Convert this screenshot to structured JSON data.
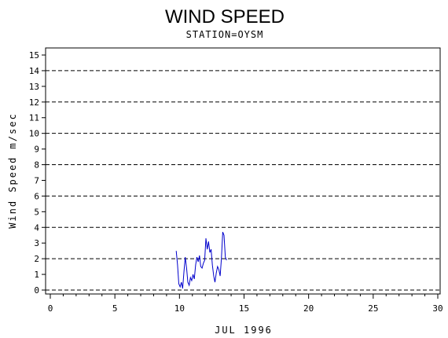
{
  "chart_data": {
    "type": "line",
    "title": "WIND SPEED",
    "subtitle": "STATION=OYSM",
    "xlabel": "JUL 1996",
    "ylabel": "Wind Speed m/sec",
    "xlim": [
      0,
      30
    ],
    "ylim": [
      0,
      15
    ],
    "x_ticks": [
      0,
      5,
      10,
      15,
      20,
      25,
      30
    ],
    "y_ticks": [
      0,
      1,
      2,
      3,
      4,
      5,
      6,
      7,
      8,
      9,
      10,
      11,
      12,
      13,
      14,
      15
    ],
    "gridlines_y": [
      0,
      2,
      4,
      6,
      8,
      10,
      12,
      14
    ],
    "grid": "dashed horizontal",
    "series_color": "#0000cc",
    "series": [
      {
        "x": [
          9.75,
          9.85,
          9.95,
          10.05,
          10.15,
          10.25,
          10.35,
          10.45,
          10.55,
          10.65,
          10.75,
          10.85,
          10.95,
          11.05,
          11.15,
          11.25,
          11.35,
          11.45,
          11.55,
          11.65,
          11.75,
          11.85,
          11.95,
          12.05,
          12.15,
          12.25,
          12.35,
          12.45,
          12.55,
          12.65,
          12.75,
          12.85,
          12.95,
          13.05,
          13.15,
          13.25,
          13.35,
          13.45,
          13.55,
          13.65
        ],
        "values": [
          2.5,
          1.6,
          0.4,
          0.2,
          0.5,
          0.1,
          1.2,
          2.1,
          1.4,
          0.5,
          0.3,
          0.8,
          0.6,
          1.0,
          0.7,
          1.6,
          2.1,
          1.8,
          2.2,
          1.5,
          1.4,
          1.7,
          1.9,
          3.3,
          2.6,
          3.1,
          2.4,
          2.6,
          1.6,
          0.9,
          0.5,
          1.1,
          1.5,
          1.3,
          0.9,
          2.0,
          3.7,
          3.5,
          2.1,
          1.9
        ]
      }
    ]
  }
}
